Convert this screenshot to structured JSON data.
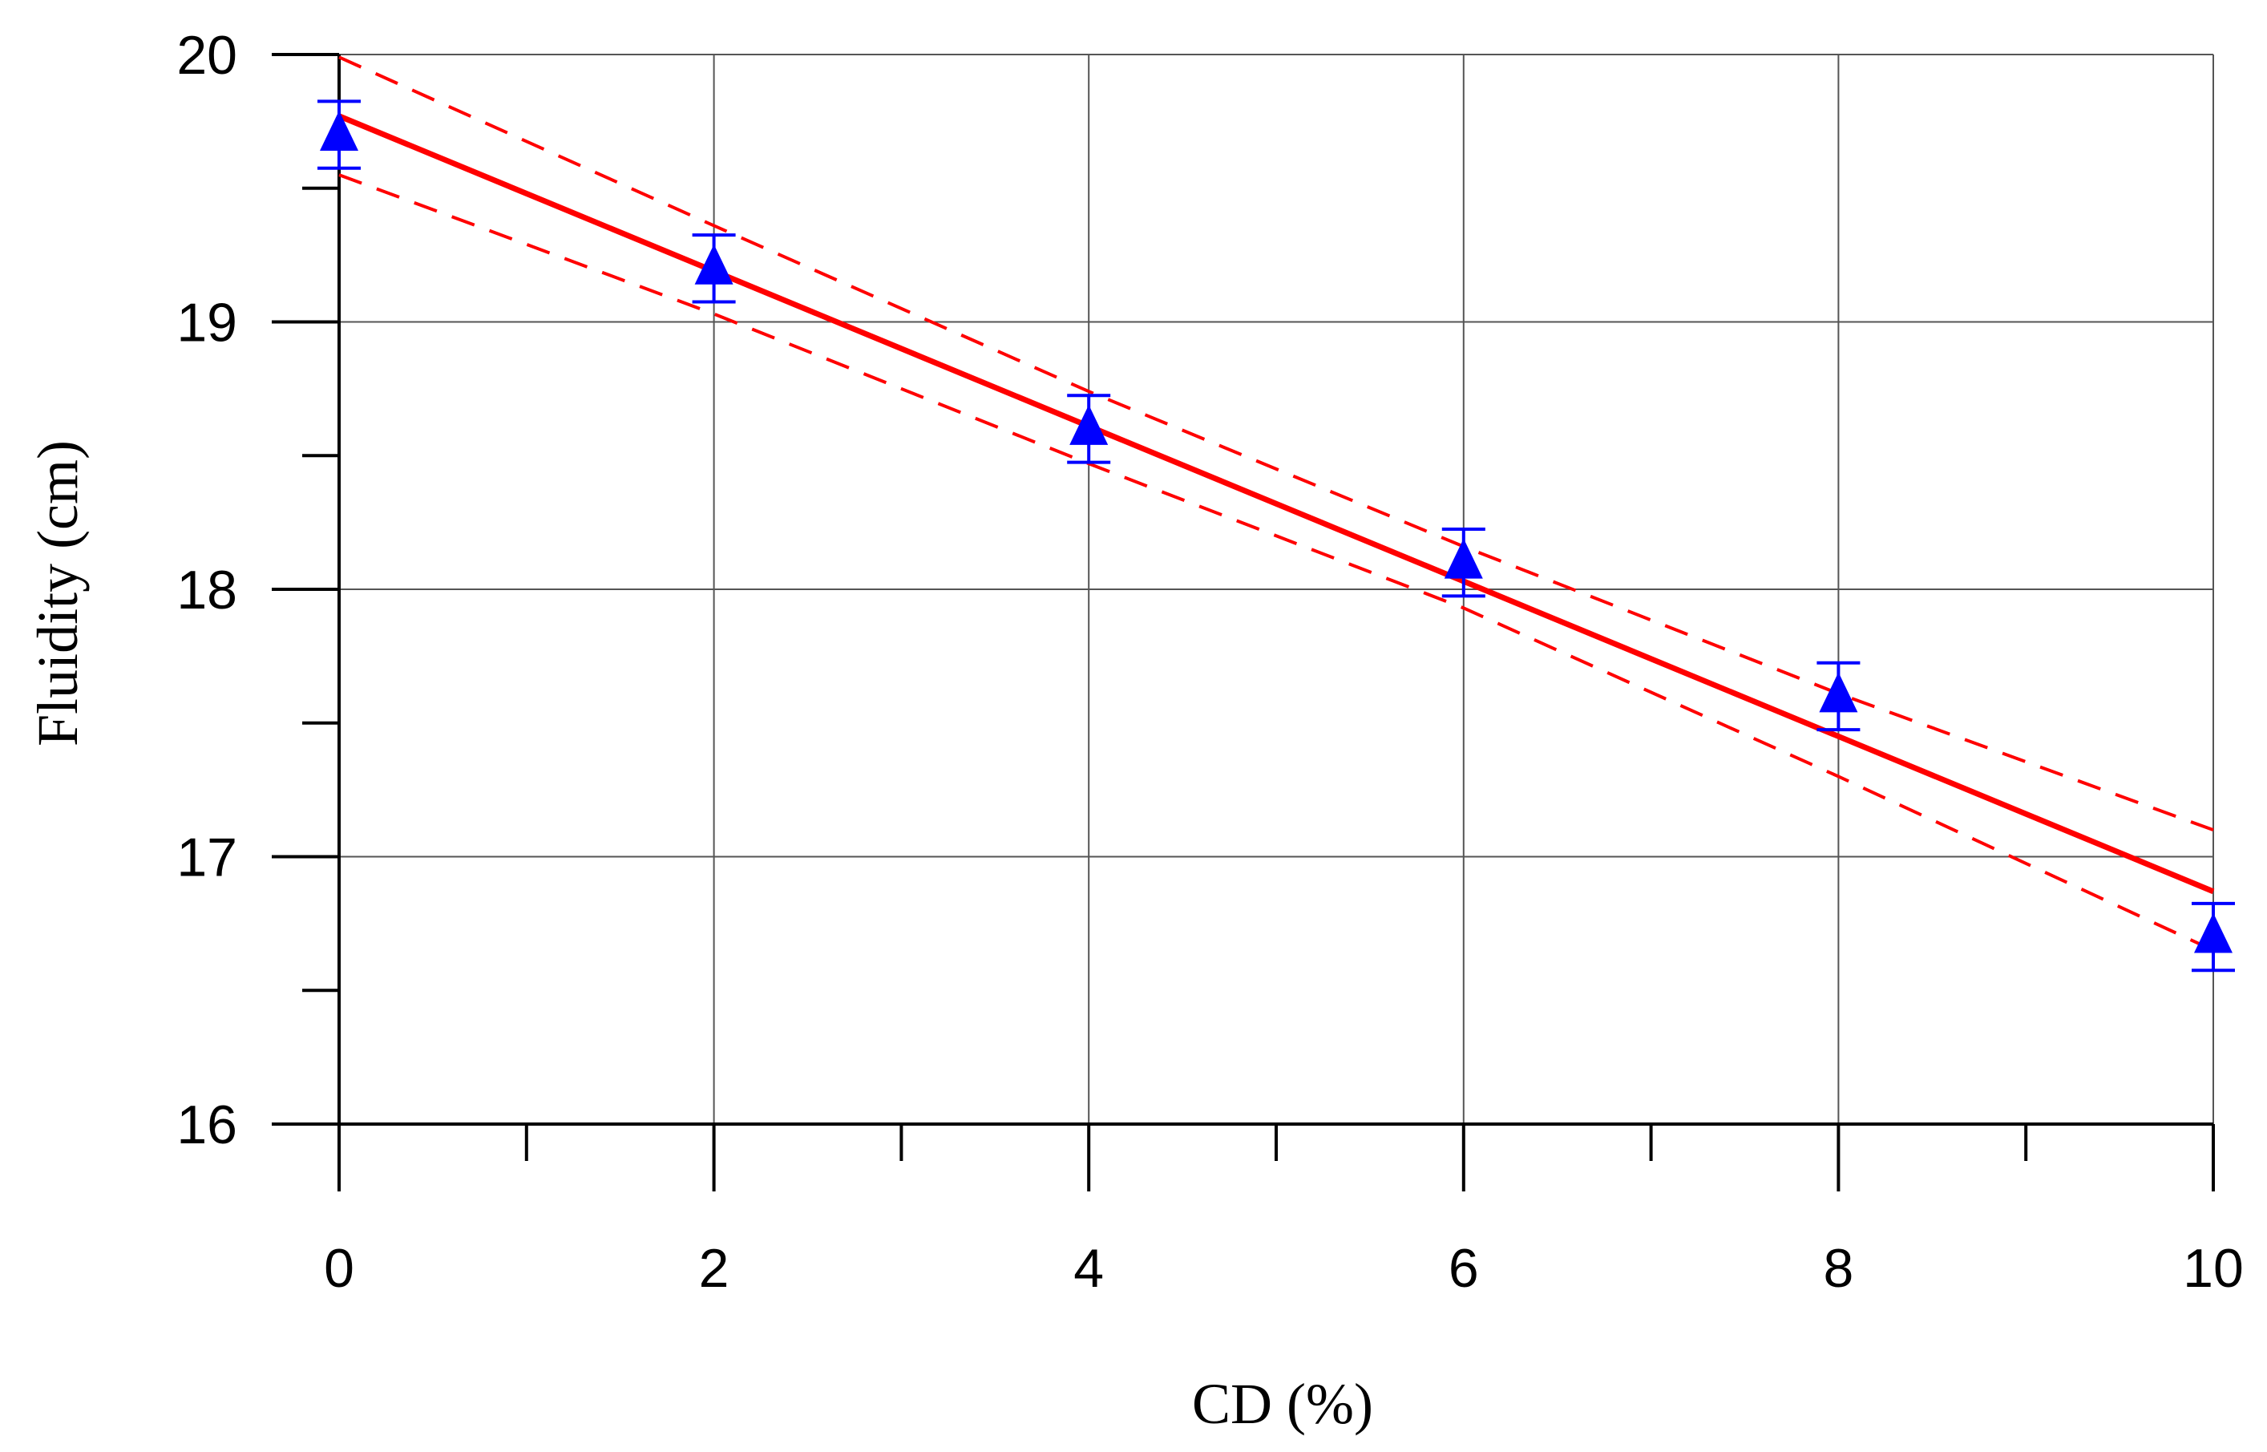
{
  "chart_data": {
    "type": "scatter",
    "title": "",
    "xlabel": "CD (%)",
    "ylabel": "Fluidity (cm)",
    "xlim": [
      0,
      10
    ],
    "ylim": [
      16,
      20
    ],
    "x_ticks": [
      0,
      2,
      4,
      6,
      8,
      10
    ],
    "x_minor_ticks": [
      1,
      3,
      5,
      7,
      9
    ],
    "y_ticks": [
      16,
      17,
      18,
      19,
      20
    ],
    "y_minor_ticks": [
      16.5,
      17.5,
      18.5,
      19.5
    ],
    "grid": true,
    "series": [
      {
        "kind": "points",
        "marker": "triangle",
        "color": "#0000ff",
        "x": [
          0,
          2,
          4,
          6,
          8,
          10
        ],
        "y": [
          19.7,
          19.2,
          18.6,
          18.1,
          17.6,
          16.7
        ],
        "error": [
          0.125,
          0.125,
          0.125,
          0.125,
          0.125,
          0.125
        ]
      },
      {
        "kind": "fit",
        "style": "solid",
        "color": "#ff0000",
        "x": [
          0,
          10
        ],
        "y": [
          19.77,
          16.87
        ]
      },
      {
        "kind": "confidence-upper",
        "style": "dashed",
        "color": "#ff0000",
        "x": [
          0,
          2,
          4,
          6,
          8,
          10
        ],
        "y": [
          19.99,
          19.36,
          18.74,
          18.16,
          17.61,
          17.1
        ]
      },
      {
        "kind": "confidence-lower",
        "style": "dashed",
        "color": "#ff0000",
        "x": [
          0,
          2,
          4,
          6,
          8,
          10
        ],
        "y": [
          19.55,
          19.03,
          18.47,
          17.93,
          17.3,
          16.65
        ]
      }
    ]
  }
}
